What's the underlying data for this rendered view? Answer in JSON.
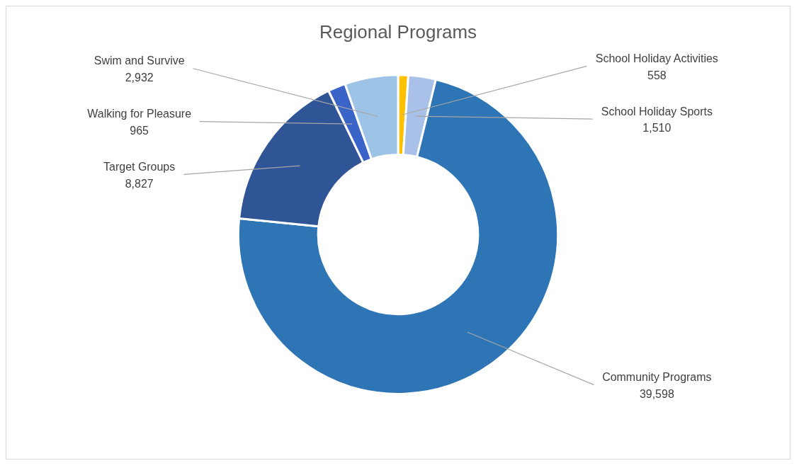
{
  "chart_data": {
    "type": "donut",
    "title": "Regional Programs",
    "categories": [
      "School Holiday Activities",
      "School Holiday Sports",
      "Community Programs",
      "Target Groups",
      "Walking for Pleasure",
      "Swim and Survive"
    ],
    "values": [
      558,
      1510,
      39598,
      8827,
      965,
      2932
    ],
    "value_labels": [
      "558",
      "1,510",
      "39,598",
      "8,827",
      "965",
      "2,932"
    ],
    "colors": [
      "#ffc000",
      "#a9c1e8",
      "#2e75b6",
      "#2f5597",
      "#3b64c8",
      "#9dc3e6"
    ]
  }
}
